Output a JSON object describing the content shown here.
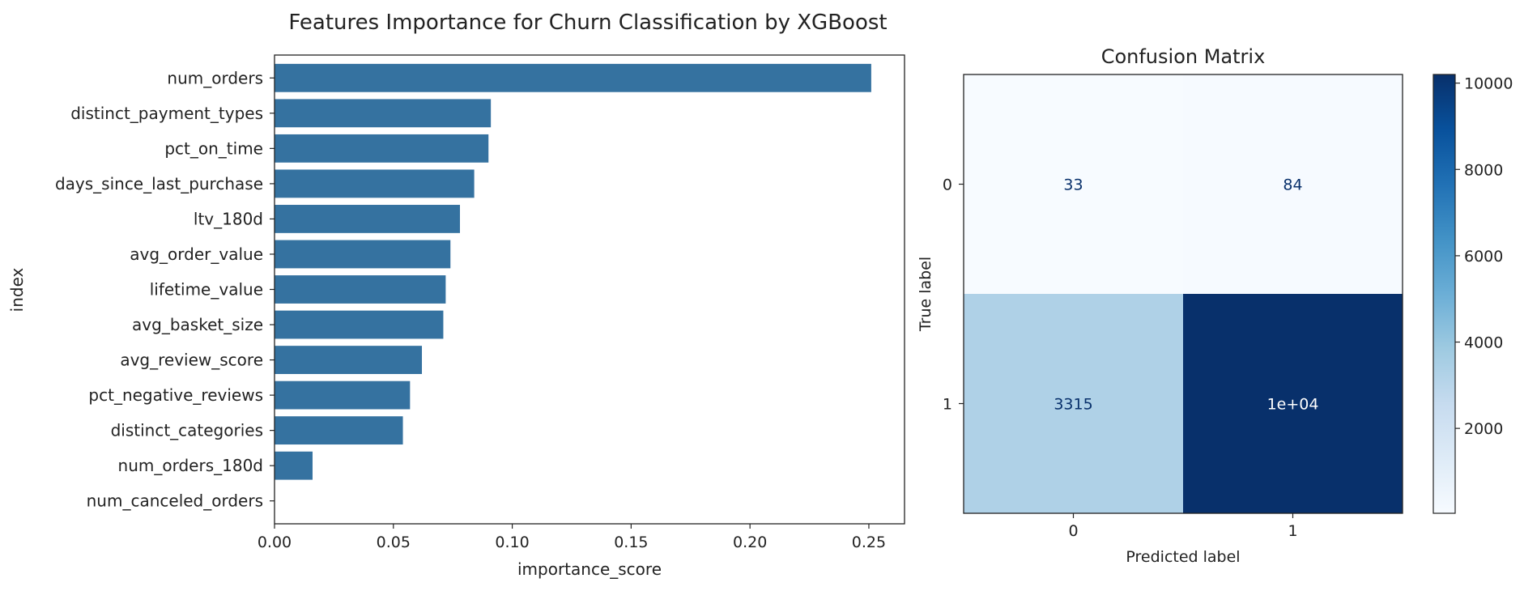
{
  "chart_data": [
    {
      "type": "bar",
      "orientation": "horizontal",
      "title": "Features Importance for Churn Classification by XGBoost",
      "xlabel": "importance_score",
      "ylabel": "index",
      "xlim": [
        0,
        0.265
      ],
      "xticks": [
        "0.00",
        "0.05",
        "0.10",
        "0.15",
        "0.20",
        "0.25"
      ],
      "bar_color": "#3572a0",
      "categories": [
        "num_orders",
        "distinct_payment_types",
        "pct_on_time",
        "days_since_last_purchase",
        "ltv_180d",
        "avg_order_value",
        "lifetime_value",
        "avg_basket_size",
        "avg_review_score",
        "pct_negative_reviews",
        "distinct_categories",
        "num_orders_180d",
        "num_canceled_orders"
      ],
      "values": [
        0.251,
        0.091,
        0.09,
        0.084,
        0.078,
        0.074,
        0.072,
        0.071,
        0.062,
        0.057,
        0.054,
        0.016,
        0.0
      ],
      "grid": false
    },
    {
      "type": "heatmap",
      "title": "Confusion Matrix",
      "xlabel": "Predicted label",
      "ylabel": "True label",
      "x_categories": [
        "0",
        "1"
      ],
      "y_categories": [
        "0",
        "1"
      ],
      "cells": [
        {
          "row": 0,
          "col": 0,
          "label": "33",
          "value": 33
        },
        {
          "row": 0,
          "col": 1,
          "label": "84",
          "value": 84
        },
        {
          "row": 1,
          "col": 0,
          "label": "3315",
          "value": 3315
        },
        {
          "row": 1,
          "col": 1,
          "label": "1e+04",
          "value": 10200
        }
      ],
      "colormap": "Blues",
      "colorbar": {
        "range": [
          33,
          10200
        ],
        "ticks": [
          "2000",
          "4000",
          "6000",
          "8000",
          "10000"
        ],
        "tick_values": [
          2000,
          4000,
          6000,
          8000,
          10000
        ]
      }
    }
  ]
}
